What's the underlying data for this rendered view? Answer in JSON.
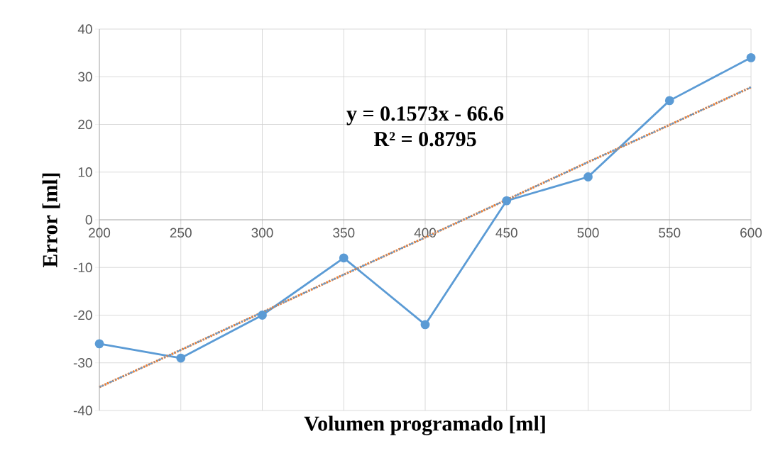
{
  "chart_data": {
    "type": "line",
    "xlabel": "Volumen programado [ml]",
    "ylabel": "Error [ml]",
    "x": [
      200,
      250,
      300,
      350,
      400,
      450,
      500,
      550,
      600
    ],
    "series": [
      {
        "color": "#5b9bd5",
        "values": [
          -26,
          -29,
          -20,
          -8,
          -22,
          4,
          9,
          25,
          34
        ],
        "marker": "circle",
        "line_style": "solid"
      },
      {
        "color": "#ed7d31",
        "values": [
          -35.1,
          -27.3,
          -19.4,
          -11.5,
          -3.7,
          4.2,
          12.1,
          19.9,
          27.8
        ],
        "marker": "none",
        "line_style": "dotted"
      },
      {
        "color": "#5b9bd5",
        "values": [
          -35.1,
          -27.3,
          -19.4,
          -11.5,
          -3.7,
          4.2,
          12.1,
          19.9,
          27.8
        ],
        "marker": "none",
        "line_style": "dashed"
      }
    ],
    "annotations": [
      "y = 0.1573x - 66.6",
      "R² = 0.8795"
    ],
    "xlim": [
      200,
      600
    ],
    "ylim": [
      -40,
      40
    ],
    "xticks": [
      200,
      250,
      300,
      350,
      400,
      450,
      500,
      550,
      600
    ],
    "yticks": [
      -40,
      -30,
      -20,
      -10,
      0,
      10,
      20,
      30,
      40
    ],
    "grid": true
  }
}
